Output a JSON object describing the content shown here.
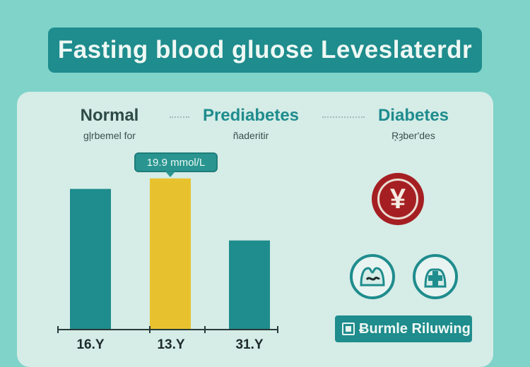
{
  "title": "Fasting blood gluose Leveslaterdr",
  "categories": [
    {
      "label": "Normal",
      "sublabel": "gļrbemel for",
      "color": "#2d4a47"
    },
    {
      "label": "Prediabetes",
      "sublabel": "ñaderitir",
      "color": "#1f8c8d"
    },
    {
      "label": "Diabetes",
      "sublabel": "Ŗȝber'des",
      "color": "#1f8c8d"
    }
  ],
  "callout": "19.9 mmol/L",
  "badge_symbol": "¥",
  "action_button": {
    "label": "Ƀurmle Riluwing",
    "icon": "grid-icon"
  },
  "icons": [
    "stomach-icon",
    "body-cross-icon"
  ],
  "chart_data": {
    "type": "bar",
    "title": "Fasting blood gluose Leveslaterdr",
    "categories": [
      "16.Y",
      "13.Y",
      "31.Y"
    ],
    "values": [
      16.1,
      17.3,
      10.2
    ],
    "colors": [
      "#1f8c8d",
      "#e8c22e",
      "#1f8c8d"
    ],
    "ylim": [
      0,
      21
    ],
    "grid": false,
    "legend": "none"
  }
}
